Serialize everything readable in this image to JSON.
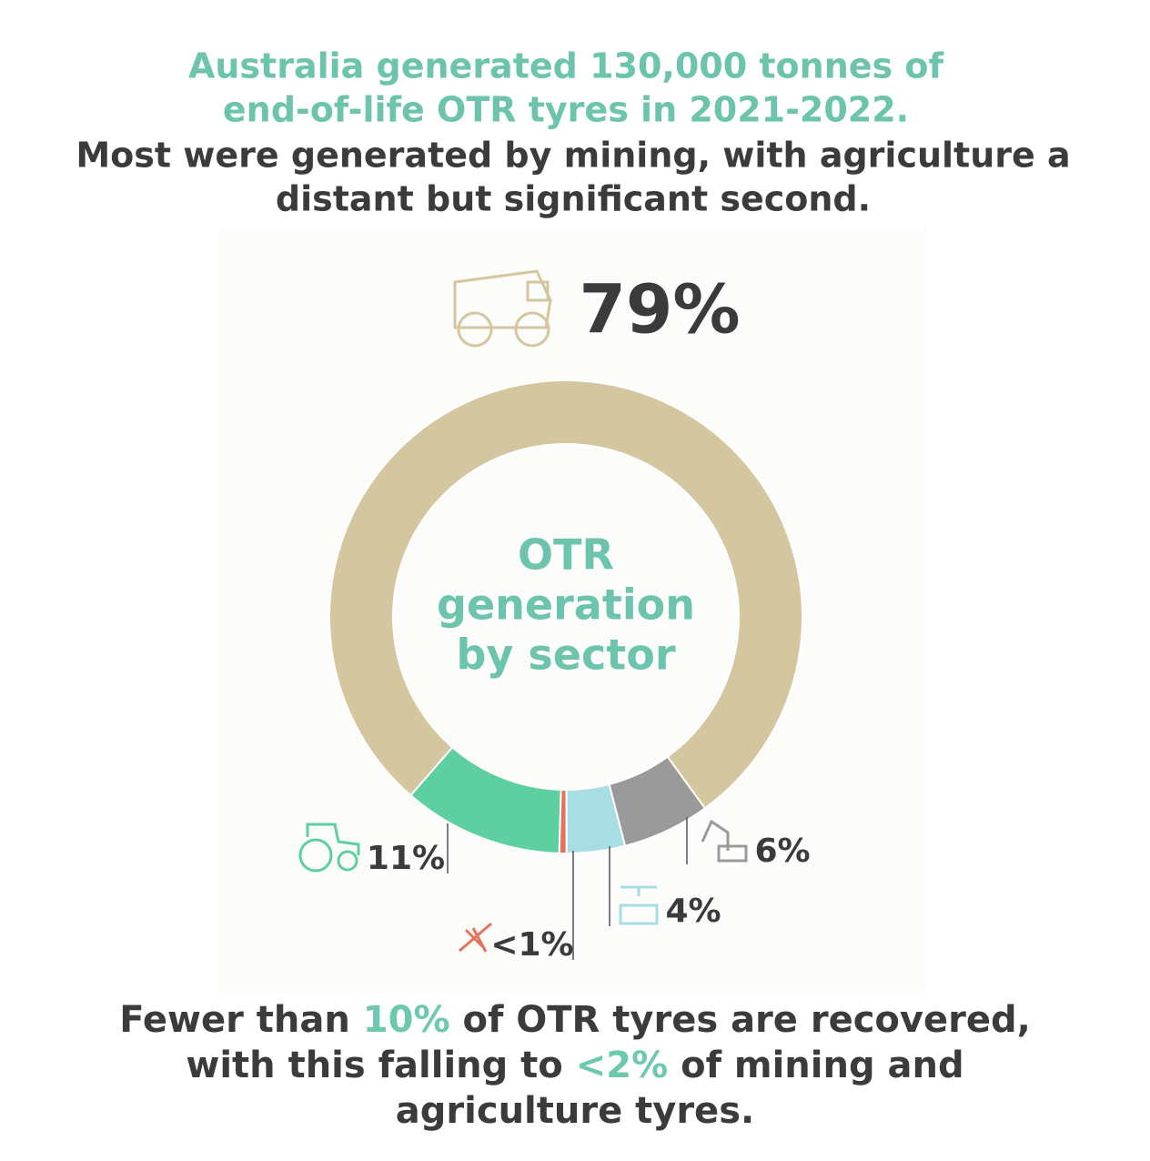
{
  "chart_data": {
    "type": "donut",
    "title": [
      "Australia generated 130,000 tonnes of",
      "end-of-life OTR tyres in 2021-2022."
    ],
    "subtitle": [
      "Most were generated by mining, with agriculture a",
      "distant but significant second."
    ],
    "center_label": [
      "OTR",
      "generation",
      "by sector"
    ],
    "values": [
      79,
      11,
      0.5,
      4,
      6
    ],
    "value_labels": [
      "79%",
      "11%",
      "<1%",
      "4%",
      "6%"
    ],
    "colors": [
      "#d4c69f",
      "#5dcfa1",
      "#e3735c",
      "#a9dde4",
      "#9a9a9a"
    ],
    "footnote": [
      [
        {
          "text": "Fewer than ",
          "highlight": false
        },
        {
          "text": "10%",
          "highlight": true
        },
        {
          "text": " of OTR tyres are recovered,",
          "highlight": false
        }
      ],
      [
        {
          "text": "with this falling to ",
          "highlight": false
        },
        {
          "text": "<2%",
          "highlight": true
        },
        {
          "text": " of mining and",
          "highlight": false
        }
      ],
      [
        {
          "text": "agriculture tyres.",
          "highlight": false
        }
      ]
    ],
    "highlight_color": "#6cc9b0"
  }
}
